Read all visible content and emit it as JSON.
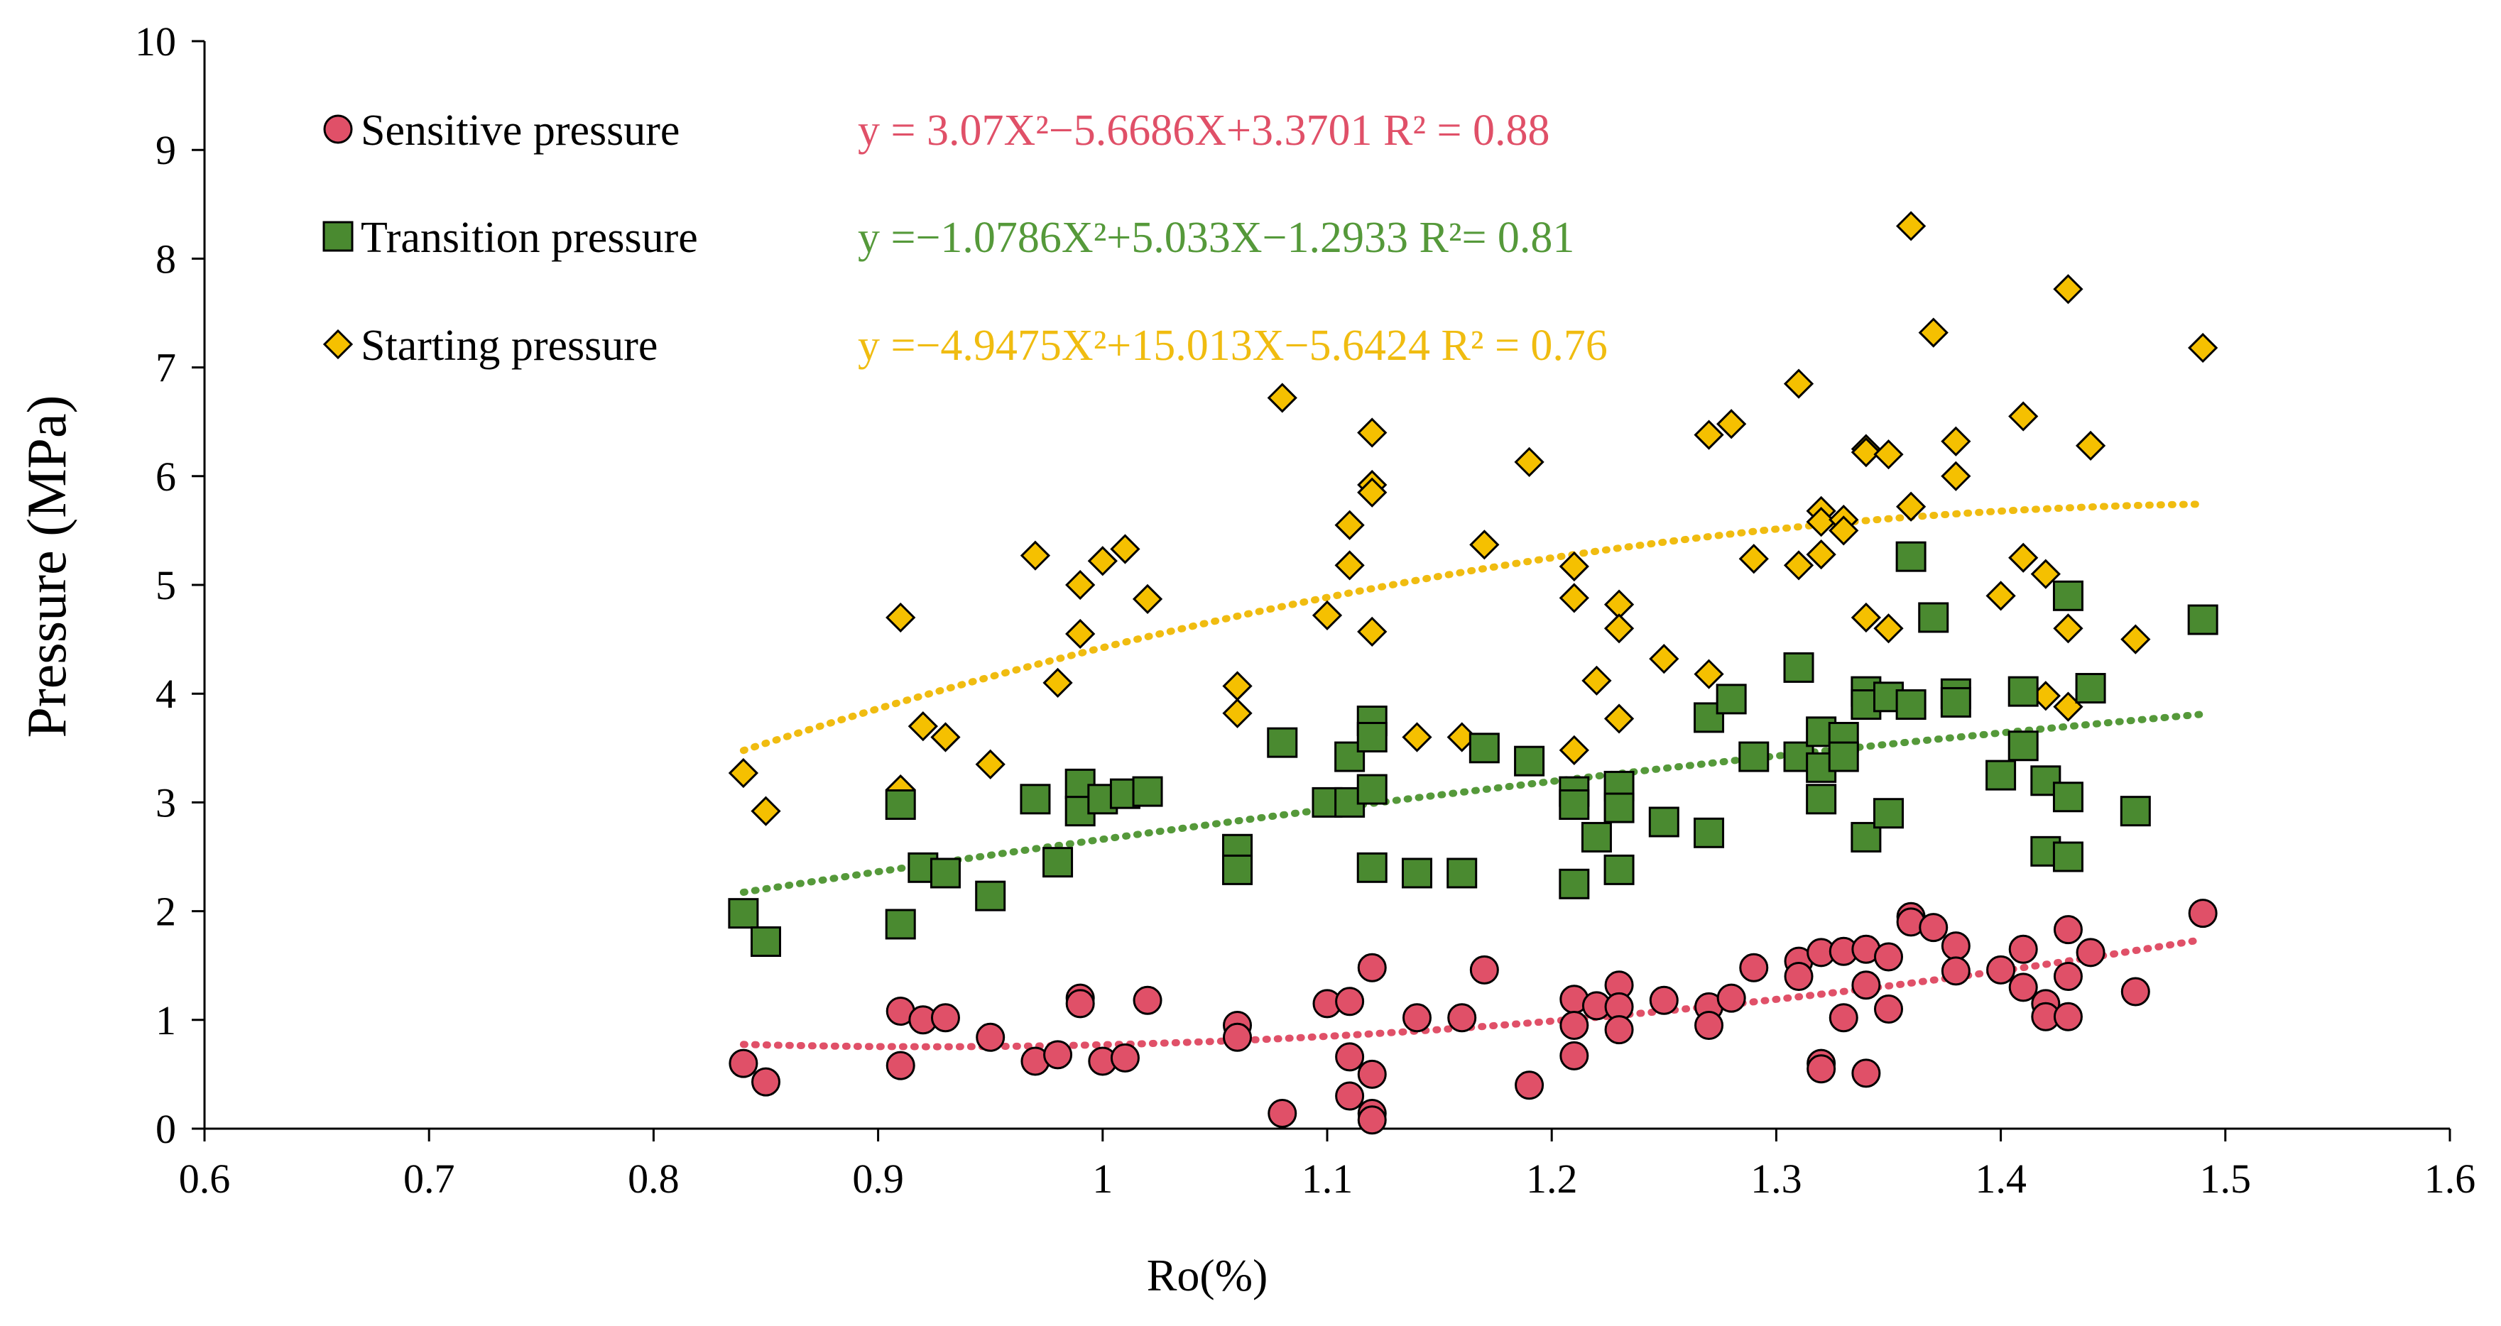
{
  "chart_data": {
    "type": "scatter",
    "title": "",
    "xlabel": "Ro(%)",
    "ylabel": "Pressure (MPa)",
    "xlim": [
      0.6,
      1.6
    ],
    "ylim": [
      0,
      10
    ],
    "xticks": [
      "0.6",
      "0.7",
      "0.8",
      "0.9",
      "1",
      "1.1",
      "1.2",
      "1.3",
      "1.4",
      "1.5",
      "1.6"
    ],
    "yticks": [
      "0",
      "1",
      "2",
      "3",
      "4",
      "5",
      "6",
      "7",
      "8",
      "9",
      "10"
    ],
    "grid": false,
    "legend_position": "top-left",
    "series": [
      {
        "name": "Sensitive pressure",
        "marker": "circle",
        "color": "#e05068",
        "trend_color": "#e05068",
        "equation_text": "y = 3.07X²−5.6686X+3.3701 R² = 0.88",
        "trend": {
          "a": 3.07,
          "b": -5.6686,
          "c": 3.3701,
          "x_range": [
            0.84,
            1.49
          ]
        },
        "points": [
          [
            0.84,
            0.6
          ],
          [
            0.85,
            0.43
          ],
          [
            0.91,
            1.08
          ],
          [
            0.91,
            0.58
          ],
          [
            0.92,
            1.0
          ],
          [
            0.93,
            1.02
          ],
          [
            0.95,
            0.84
          ],
          [
            0.97,
            0.62
          ],
          [
            0.98,
            0.68
          ],
          [
            0.99,
            1.2
          ],
          [
            0.99,
            1.15
          ],
          [
            1.0,
            0.62
          ],
          [
            1.01,
            0.65
          ],
          [
            1.02,
            1.18
          ],
          [
            1.06,
            0.95
          ],
          [
            1.06,
            0.84
          ],
          [
            1.08,
            0.14
          ],
          [
            1.1,
            1.15
          ],
          [
            1.11,
            1.17
          ],
          [
            1.11,
            0.66
          ],
          [
            1.11,
            0.3
          ],
          [
            1.12,
            1.48
          ],
          [
            1.12,
            0.5
          ],
          [
            1.12,
            0.14
          ],
          [
            1.12,
            0.08
          ],
          [
            1.14,
            1.02
          ],
          [
            1.16,
            1.02
          ],
          [
            1.17,
            1.46
          ],
          [
            1.19,
            0.4
          ],
          [
            1.21,
            1.19
          ],
          [
            1.21,
            0.95
          ],
          [
            1.21,
            0.67
          ],
          [
            1.22,
            1.13
          ],
          [
            1.23,
            1.32
          ],
          [
            1.23,
            1.12
          ],
          [
            1.23,
            0.91
          ],
          [
            1.25,
            1.18
          ],
          [
            1.27,
            1.12
          ],
          [
            1.27,
            0.95
          ],
          [
            1.28,
            1.2
          ],
          [
            1.29,
            1.48
          ],
          [
            1.31,
            1.54
          ],
          [
            1.31,
            1.4
          ],
          [
            1.32,
            1.62
          ],
          [
            1.32,
            0.6
          ],
          [
            1.32,
            0.55
          ],
          [
            1.33,
            1.63
          ],
          [
            1.33,
            1.02
          ],
          [
            1.34,
            1.65
          ],
          [
            1.34,
            1.32
          ],
          [
            1.34,
            0.51
          ],
          [
            1.35,
            1.58
          ],
          [
            1.35,
            1.1
          ],
          [
            1.36,
            1.95
          ],
          [
            1.36,
            1.9
          ],
          [
            1.37,
            1.85
          ],
          [
            1.38,
            1.68
          ],
          [
            1.38,
            1.45
          ],
          [
            1.4,
            1.46
          ],
          [
            1.41,
            1.65
          ],
          [
            1.41,
            1.3
          ],
          [
            1.42,
            1.15
          ],
          [
            1.42,
            1.03
          ],
          [
            1.43,
            1.83
          ],
          [
            1.43,
            1.4
          ],
          [
            1.43,
            1.03
          ],
          [
            1.44,
            1.62
          ],
          [
            1.46,
            1.26
          ],
          [
            1.49,
            1.98
          ]
        ]
      },
      {
        "name": "Transition pressure",
        "marker": "square",
        "color": "#4a8a30",
        "trend_color": "#55993a",
        "equation_text": "y =−1.0786X²+5.033X−1.2933 R²= 0.81",
        "trend": {
          "a": -1.0786,
          "b": 5.033,
          "c": -1.2933,
          "x_range": [
            0.84,
            1.49
          ]
        },
        "points": [
          [
            0.84,
            1.98
          ],
          [
            0.85,
            1.72
          ],
          [
            0.91,
            2.98
          ],
          [
            0.91,
            1.88
          ],
          [
            0.92,
            2.4
          ],
          [
            0.93,
            2.35
          ],
          [
            0.95,
            2.14
          ],
          [
            0.97,
            3.03
          ],
          [
            0.98,
            2.45
          ],
          [
            0.99,
            3.17
          ],
          [
            0.99,
            2.92
          ],
          [
            1.0,
            3.03
          ],
          [
            1.01,
            3.08
          ],
          [
            1.02,
            3.1
          ],
          [
            1.06,
            2.57
          ],
          [
            1.06,
            2.38
          ],
          [
            1.08,
            3.55
          ],
          [
            1.1,
            3.0
          ],
          [
            1.11,
            3.42
          ],
          [
            1.11,
            3.0
          ],
          [
            1.12,
            3.75
          ],
          [
            1.12,
            3.6
          ],
          [
            1.12,
            3.12
          ],
          [
            1.12,
            2.4
          ],
          [
            1.14,
            2.35
          ],
          [
            1.16,
            2.35
          ],
          [
            1.17,
            3.5
          ],
          [
            1.19,
            3.38
          ],
          [
            1.21,
            3.1
          ],
          [
            1.21,
            2.98
          ],
          [
            1.21,
            2.25
          ],
          [
            1.22,
            2.68
          ],
          [
            1.23,
            3.15
          ],
          [
            1.23,
            2.95
          ],
          [
            1.23,
            2.38
          ],
          [
            1.25,
            2.82
          ],
          [
            1.27,
            3.78
          ],
          [
            1.27,
            2.72
          ],
          [
            1.28,
            3.95
          ],
          [
            1.29,
            3.42
          ],
          [
            1.31,
            4.24
          ],
          [
            1.31,
            3.42
          ],
          [
            1.32,
            3.65
          ],
          [
            1.32,
            3.32
          ],
          [
            1.32,
            3.03
          ],
          [
            1.33,
            3.6
          ],
          [
            1.33,
            3.42
          ],
          [
            1.34,
            4.02
          ],
          [
            1.34,
            3.9
          ],
          [
            1.34,
            2.68
          ],
          [
            1.35,
            3.97
          ],
          [
            1.35,
            2.9
          ],
          [
            1.36,
            5.26
          ],
          [
            1.36,
            3.9
          ],
          [
            1.37,
            4.7
          ],
          [
            1.38,
            4.0
          ],
          [
            1.38,
            3.92
          ],
          [
            1.4,
            3.25
          ],
          [
            1.41,
            4.02
          ],
          [
            1.41,
            3.52
          ],
          [
            1.42,
            3.2
          ],
          [
            1.42,
            2.55
          ],
          [
            1.43,
            4.9
          ],
          [
            1.43,
            3.05
          ],
          [
            1.43,
            2.5
          ],
          [
            1.44,
            4.05
          ],
          [
            1.46,
            2.92
          ],
          [
            1.49,
            4.68
          ]
        ]
      },
      {
        "name": "Starting pressure",
        "marker": "diamond",
        "color": "#f5c000",
        "trend_color": "#f0bc10",
        "equation_text": "y =−4.9475X²+15.013X−5.6424  R² = 0.76",
        "trend": {
          "a": -4.9475,
          "b": 15.013,
          "c": -5.6424,
          "x_range": [
            0.84,
            1.49
          ]
        },
        "points": [
          [
            0.84,
            3.27
          ],
          [
            0.85,
            2.92
          ],
          [
            0.91,
            4.7
          ],
          [
            0.91,
            3.12
          ],
          [
            0.92,
            3.7
          ],
          [
            0.93,
            3.6
          ],
          [
            0.95,
            3.35
          ],
          [
            0.97,
            5.27
          ],
          [
            0.98,
            4.1
          ],
          [
            0.99,
            5.0
          ],
          [
            0.99,
            4.55
          ],
          [
            1.0,
            5.22
          ],
          [
            1.01,
            5.33
          ],
          [
            1.02,
            4.87
          ],
          [
            1.06,
            4.07
          ],
          [
            1.06,
            3.82
          ],
          [
            1.08,
            6.72
          ],
          [
            1.1,
            4.72
          ],
          [
            1.11,
            5.55
          ],
          [
            1.11,
            5.18
          ],
          [
            1.12,
            6.4
          ],
          [
            1.12,
            5.92
          ],
          [
            1.12,
            5.85
          ],
          [
            1.12,
            4.57
          ],
          [
            1.14,
            3.6
          ],
          [
            1.16,
            3.6
          ],
          [
            1.17,
            5.37
          ],
          [
            1.19,
            6.13
          ],
          [
            1.21,
            5.17
          ],
          [
            1.21,
            4.88
          ],
          [
            1.21,
            3.48
          ],
          [
            1.22,
            4.12
          ],
          [
            1.23,
            4.82
          ],
          [
            1.23,
            4.6
          ],
          [
            1.23,
            3.77
          ],
          [
            1.25,
            4.32
          ],
          [
            1.27,
            6.38
          ],
          [
            1.27,
            4.18
          ],
          [
            1.28,
            6.48
          ],
          [
            1.29,
            5.24
          ],
          [
            1.31,
            6.85
          ],
          [
            1.31,
            5.18
          ],
          [
            1.32,
            5.68
          ],
          [
            1.32,
            5.58
          ],
          [
            1.32,
            5.28
          ],
          [
            1.33,
            5.6
          ],
          [
            1.33,
            5.5
          ],
          [
            1.34,
            6.25
          ],
          [
            1.34,
            6.22
          ],
          [
            1.34,
            4.7
          ],
          [
            1.35,
            6.2
          ],
          [
            1.35,
            4.6
          ],
          [
            1.36,
            8.3
          ],
          [
            1.36,
            5.72
          ],
          [
            1.37,
            7.32
          ],
          [
            1.38,
            6.32
          ],
          [
            1.38,
            6.0
          ],
          [
            1.4,
            4.9
          ],
          [
            1.41,
            6.55
          ],
          [
            1.41,
            5.25
          ],
          [
            1.42,
            5.1
          ],
          [
            1.42,
            3.98
          ],
          [
            1.43,
            7.72
          ],
          [
            1.43,
            4.6
          ],
          [
            1.43,
            3.88
          ],
          [
            1.44,
            6.28
          ],
          [
            1.46,
            4.5
          ],
          [
            1.49,
            7.18
          ]
        ]
      }
    ]
  }
}
